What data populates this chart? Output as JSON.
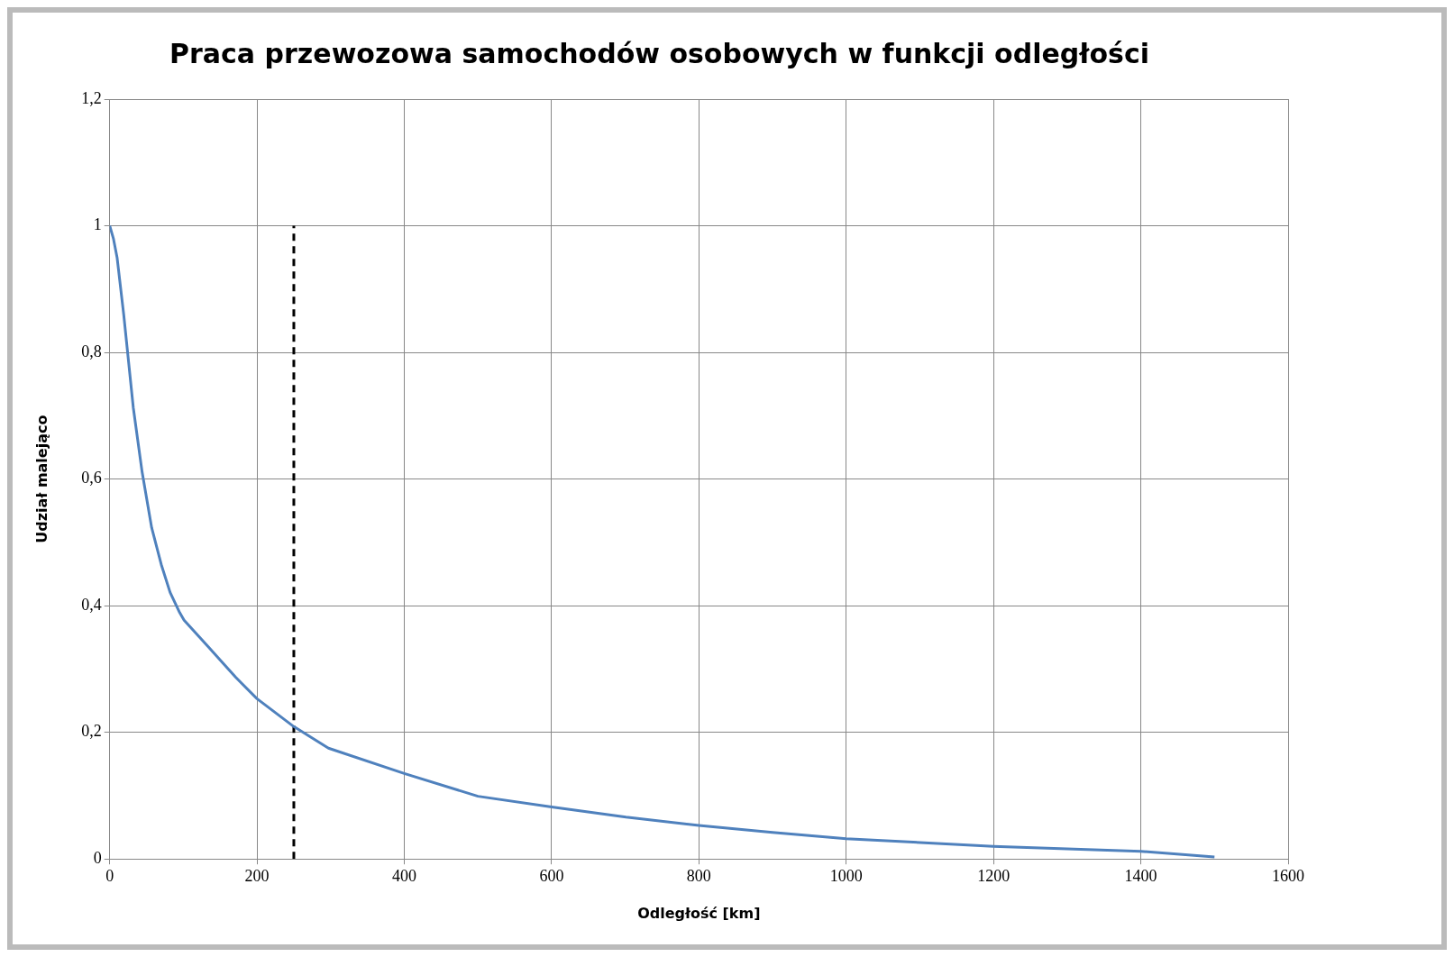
{
  "chart_data": {
    "type": "line",
    "title": "Praca przewozowa samochodów osobowych w funkcji odległości",
    "xlabel": "Odległość [km]",
    "ylabel": "Udział malejąco",
    "x": [
      0,
      5,
      10,
      19,
      32,
      44,
      57,
      70,
      82,
      95,
      101,
      133,
      171,
      200,
      250,
      297,
      400,
      500,
      600,
      701,
      800,
      900,
      1000,
      1200,
      1400,
      1500
    ],
    "series": [
      {
        "color": "#4f81bd",
        "values": [
          1.0,
          0.98,
          0.95,
          0.86,
          0.713,
          0.611,
          0.523,
          0.465,
          0.421,
          0.389,
          0.377,
          0.336,
          0.287,
          0.253,
          0.209,
          0.175,
          0.135,
          0.099,
          0.082,
          0.066,
          0.053,
          0.042,
          0.032,
          0.02,
          0.012,
          0.003
        ]
      },
      {
        "color": "#000000",
        "line_style": "dashed",
        "x": [
          250,
          250
        ],
        "values": [
          0,
          1
        ]
      }
    ],
    "xlim": [
      0,
      1600
    ],
    "xticks": [
      0,
      200,
      400,
      600,
      800,
      1000,
      1200,
      1400,
      1600
    ],
    "ylim": [
      0,
      1.2
    ],
    "yticks": [
      0,
      {
        "value": 0.2,
        "label": "0,2"
      },
      {
        "value": 0.4,
        "label": "0,4"
      },
      {
        "value": 0.6,
        "label": "0,6"
      },
      {
        "value": 0.8,
        "label": "0,8"
      },
      1,
      {
        "value": 1.2,
        "label": "1,2"
      }
    ],
    "grid": true,
    "legend": false,
    "marker": "none",
    "line_style": "solid"
  }
}
